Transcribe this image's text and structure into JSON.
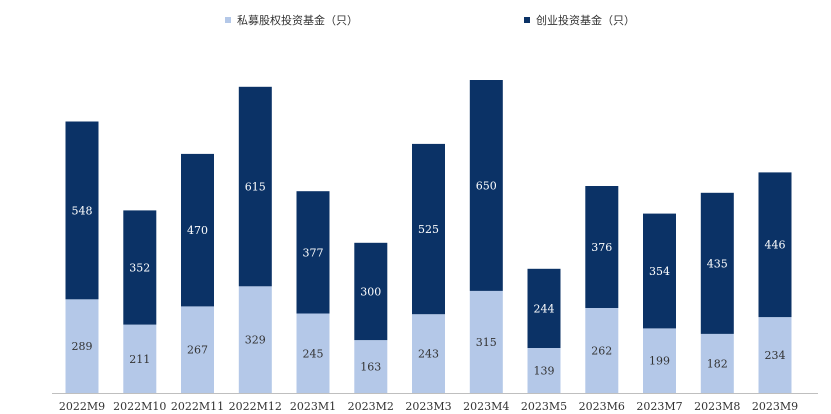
{
  "chart_data": {
    "type": "bar",
    "stacked": true,
    "categories": [
      "2022M9",
      "2022M10",
      "2022M11",
      "2022M12",
      "2023M1",
      "2023M2",
      "2023M3",
      "2023M4",
      "2023M5",
      "2023M6",
      "2023M7",
      "2023M8",
      "2023M9"
    ],
    "series": [
      {
        "name": "私募股权投资基金（只）",
        "color": "#b4c8e8",
        "label_color": "#333333",
        "values": [
          289,
          211,
          267,
          329,
          245,
          163,
          243,
          315,
          139,
          262,
          199,
          182,
          234
        ]
      },
      {
        "name": "创业投资基金（只）",
        "color": "#0b3266",
        "label_color": "#ffffff",
        "values": [
          548,
          352,
          470,
          615,
          377,
          300,
          525,
          650,
          244,
          376,
          354,
          435,
          446
        ]
      }
    ],
    "ylim": [
      0,
      1050
    ],
    "grid": false,
    "legend_position": "top"
  }
}
